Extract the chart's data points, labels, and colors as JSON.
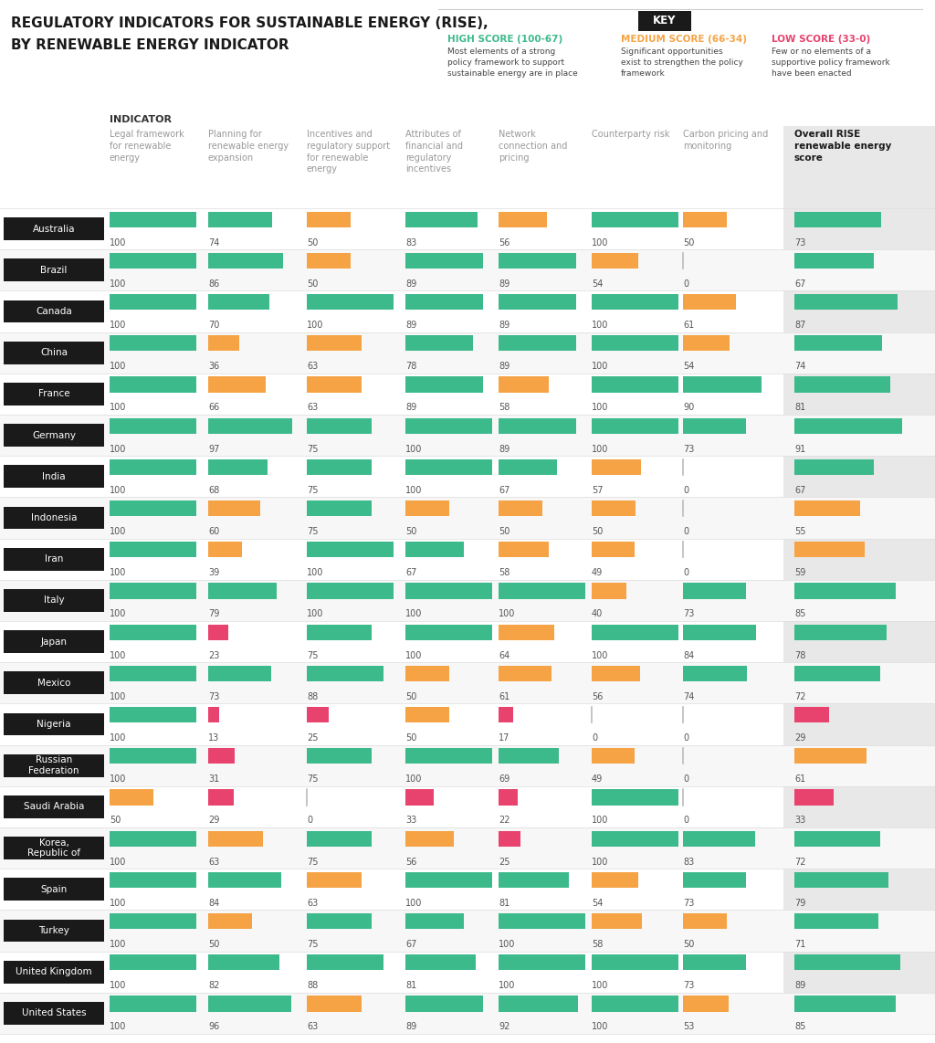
{
  "title_line1": "REGULATORY INDICATORS FOR SUSTAINABLE ENERGY (RISE),",
  "title_line2": "BY RENEWABLE ENERGY INDICATOR",
  "bg_color": "#ffffff",
  "high_color": "#3dba8c",
  "medium_color": "#f5a344",
  "low_color": "#e8426e",
  "countries": [
    "Australia",
    "Brazil",
    "Canada",
    "China",
    "France",
    "Germany",
    "India",
    "Indonesia",
    "Iran",
    "Italy",
    "Japan",
    "Mexico",
    "Nigeria",
    "Russian\nFederation",
    "Saudi Arabia",
    "Korea,\nRepublic of",
    "Spain",
    "Turkey",
    "United Kingdom",
    "United States"
  ],
  "col_headers": [
    "Legal framework\nfor renewable\nenergy",
    "Planning for\nrenewable energy\nexpansion",
    "Incentives and\nregulatory support\nfor renewable\nenergy",
    "Attributes of\nfinancial and\nregulatory\nincentives",
    "Network\nconnection and\npricing",
    "Counterparty risk",
    "Carbon pricing and\nmonitoring",
    "Overall RISE\nrenewable energy\nscore"
  ],
  "data": {
    "Australia": [
      100,
      74,
      50,
      83,
      56,
      100,
      50,
      73
    ],
    "Brazil": [
      100,
      86,
      50,
      89,
      89,
      54,
      0,
      67
    ],
    "Canada": [
      100,
      70,
      100,
      89,
      89,
      100,
      61,
      87
    ],
    "China": [
      100,
      36,
      63,
      78,
      89,
      100,
      54,
      74
    ],
    "France": [
      100,
      66,
      63,
      89,
      58,
      100,
      90,
      81
    ],
    "Germany": [
      100,
      97,
      75,
      100,
      89,
      100,
      73,
      91
    ],
    "India": [
      100,
      68,
      75,
      100,
      67,
      57,
      0,
      67
    ],
    "Indonesia": [
      100,
      60,
      75,
      50,
      50,
      50,
      0,
      55
    ],
    "Iran": [
      100,
      39,
      100,
      67,
      58,
      49,
      0,
      59
    ],
    "Italy": [
      100,
      79,
      100,
      100,
      100,
      40,
      73,
      85
    ],
    "Japan": [
      100,
      23,
      75,
      100,
      64,
      100,
      84,
      78
    ],
    "Mexico": [
      100,
      73,
      88,
      50,
      61,
      56,
      74,
      72
    ],
    "Nigeria": [
      100,
      13,
      25,
      50,
      17,
      0,
      0,
      29
    ],
    "Russian\nFederation": [
      100,
      31,
      75,
      100,
      69,
      49,
      0,
      61
    ],
    "Saudi Arabia": [
      50,
      29,
      0,
      33,
      22,
      100,
      0,
      33
    ],
    "Korea,\nRepublic of": [
      100,
      63,
      75,
      56,
      25,
      100,
      83,
      72
    ],
    "Spain": [
      100,
      84,
      63,
      100,
      81,
      54,
      73,
      79
    ],
    "Turkey": [
      100,
      50,
      75,
      67,
      100,
      58,
      50,
      71
    ],
    "United Kingdom": [
      100,
      82,
      88,
      81,
      100,
      100,
      73,
      89
    ],
    "United States": [
      100,
      96,
      63,
      89,
      92,
      100,
      53,
      85
    ]
  },
  "high_thresh": 67,
  "low_thresh": 34,
  "key_text": "KEY",
  "high_label": "HIGH SCORE (100-67)",
  "medium_label": "MEDIUM SCORE (66-34)",
  "low_label": "LOW SCORE (33-0)",
  "high_desc": "Most elements of a strong\npolicy framework to support\nsustainable energy are in place",
  "medium_desc": "Significant opportunities\nexist to strengthen the policy\nframework",
  "low_desc": "Few or no elements of a\nsupportive policy framework\nhave been enacted",
  "indicator_label": "INDICATOR"
}
